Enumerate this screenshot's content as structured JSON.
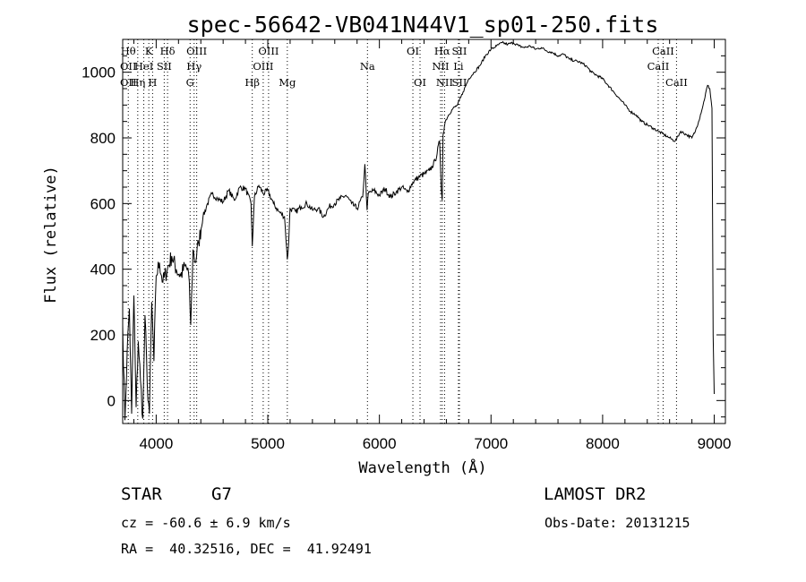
{
  "info": {
    "object_class": "STAR",
    "subclass": "G7",
    "survey": "LAMOST DR2",
    "redshift_text": "cz = -60.6 ± 6.9 km/s",
    "obs_date": "Obs-Date: 20131215",
    "coordinates": "RA =  40.32516, DEC =  41.92491"
  },
  "chart_data": {
    "type": "line",
    "title": "spec-56642-VB041N44V1_sp01-250.fits",
    "xlabel": "Wavelength (Å)",
    "ylabel": "Flux (relative)",
    "xlim": [
      3700,
      9100
    ],
    "ylim": [
      -70,
      1100
    ],
    "xticks": [
      4000,
      5000,
      6000,
      7000,
      8000,
      9000
    ],
    "yticks": [
      0,
      200,
      400,
      600,
      800,
      1000
    ],
    "grid": false,
    "series": [
      {
        "x": [
          3700,
          3720,
          3740,
          3760,
          3780,
          3800,
          3820,
          3840,
          3860,
          3880,
          3900,
          3920,
          3940,
          3960,
          3980,
          4000,
          4030,
          4060,
          4100,
          4140,
          4180,
          4220,
          4260,
          4290,
          4310,
          4330,
          4350,
          4380,
          4420,
          4460,
          4500,
          4550,
          4600,
          4650,
          4700,
          4750,
          4800,
          4850,
          4861,
          4880,
          4920,
          4960,
          5000,
          5050,
          5100,
          5150,
          5175,
          5185,
          5200,
          5250,
          5300,
          5350,
          5400,
          5450,
          5500,
          5550,
          5600,
          5650,
          5700,
          5750,
          5800,
          5850,
          5870,
          5890,
          5900,
          5950,
          6000,
          6050,
          6100,
          6150,
          6200,
          6250,
          6300,
          6350,
          6400,
          6450,
          6500,
          6540,
          6555,
          6563,
          6570,
          6590,
          6620,
          6660,
          6700,
          6750,
          6800,
          6850,
          6900,
          6950,
          7000,
          7050,
          7100,
          7150,
          7200,
          7250,
          7300,
          7350,
          7400,
          7450,
          7500,
          7550,
          7600,
          7650,
          7700,
          7750,
          7800,
          7850,
          7900,
          7950,
          8000,
          8050,
          8100,
          8150,
          8200,
          8250,
          8300,
          8350,
          8400,
          8450,
          8500,
          8550,
          8600,
          8650,
          8700,
          8750,
          8800,
          8830,
          8860,
          8900,
          8940,
          8960,
          8980,
          8990,
          9000
        ],
        "y": [
          230,
          -60,
          150,
          280,
          -40,
          320,
          -20,
          180,
          60,
          -55,
          260,
          50,
          -40,
          300,
          120,
          380,
          420,
          360,
          400,
          440,
          400,
          380,
          410,
          390,
          230,
          460,
          420,
          480,
          560,
          600,
          630,
          615,
          605,
          640,
          610,
          650,
          645,
          600,
          470,
          620,
          655,
          630,
          640,
          600,
          575,
          560,
          430,
          470,
          585,
          575,
          590,
          600,
          580,
          585,
          560,
          590,
          600,
          615,
          625,
          600,
          585,
          620,
          720,
          580,
          630,
          640,
          625,
          645,
          620,
          635,
          650,
          635,
          665,
          680,
          690,
          700,
          730,
          790,
          640,
          610,
          810,
          850,
          870,
          890,
          900,
          940,
          980,
          1000,
          1020,
          1050,
          1070,
          1080,
          1090,
          1085,
          1090,
          1080,
          1075,
          1080,
          1070,
          1075,
          1065,
          1060,
          1050,
          1055,
          1040,
          1035,
          1030,
          1020,
          1000,
          990,
          980,
          960,
          940,
          920,
          900,
          880,
          870,
          850,
          840,
          830,
          820,
          810,
          800,
          790,
          820,
          810,
          800,
          820,
          850,
          900,
          960,
          950,
          890,
          200,
          20
        ]
      }
    ],
    "lines": [
      {
        "w": 3750,
        "labels": [
          "Hθ",
          "OII",
          "OII"
        ]
      },
      {
        "w": 3835,
        "labels": [
          "",
          "",
          "Hη"
        ]
      },
      {
        "w": 3889,
        "labels": [
          "",
          "HeI",
          ""
        ]
      },
      {
        "w": 3934,
        "labels": [
          "K",
          "",
          ""
        ]
      },
      {
        "w": 3968,
        "labels": [
          "",
          "",
          "H"
        ]
      },
      {
        "w": 4072,
        "labels": [
          "",
          "SII",
          ""
        ]
      },
      {
        "w": 4102,
        "labels": [
          "Hδ",
          "",
          ""
        ]
      },
      {
        "w": 4304,
        "labels": [
          "",
          "",
          "G"
        ]
      },
      {
        "w": 4340,
        "labels": [
          "",
          "Hγ",
          ""
        ]
      },
      {
        "w": 4363,
        "labels": [
          "OIII",
          "",
          ""
        ]
      },
      {
        "w": 4861,
        "labels": [
          "",
          "",
          "Hβ"
        ]
      },
      {
        "w": 4959,
        "labels": [
          "",
          "OIII",
          ""
        ]
      },
      {
        "w": 5007,
        "labels": [
          "OIII",
          "",
          ""
        ]
      },
      {
        "w": 5175,
        "labels": [
          "",
          "",
          "Mg"
        ]
      },
      {
        "w": 5893,
        "labels": [
          "",
          "Na",
          ""
        ]
      },
      {
        "w": 6300,
        "labels": [
          "OI",
          "",
          ""
        ]
      },
      {
        "w": 6364,
        "labels": [
          "",
          "",
          "OI"
        ]
      },
      {
        "w": 6548,
        "labels": [
          "",
          "NII",
          ""
        ]
      },
      {
        "w": 6563,
        "labels": [
          "Hα",
          "",
          ""
        ]
      },
      {
        "w": 6584,
        "labels": [
          "",
          "",
          "NII"
        ]
      },
      {
        "w": 6708,
        "labels": [
          "",
          "Li",
          ""
        ]
      },
      {
        "w": 6717,
        "labels": [
          "SII",
          "",
          "SII"
        ]
      },
      {
        "w": 8498,
        "labels": [
          "",
          "CaII",
          ""
        ]
      },
      {
        "w": 8542,
        "labels": [
          "CaII",
          "",
          ""
        ]
      },
      {
        "w": 8662,
        "labels": [
          "",
          "",
          "CaII"
        ]
      }
    ]
  }
}
